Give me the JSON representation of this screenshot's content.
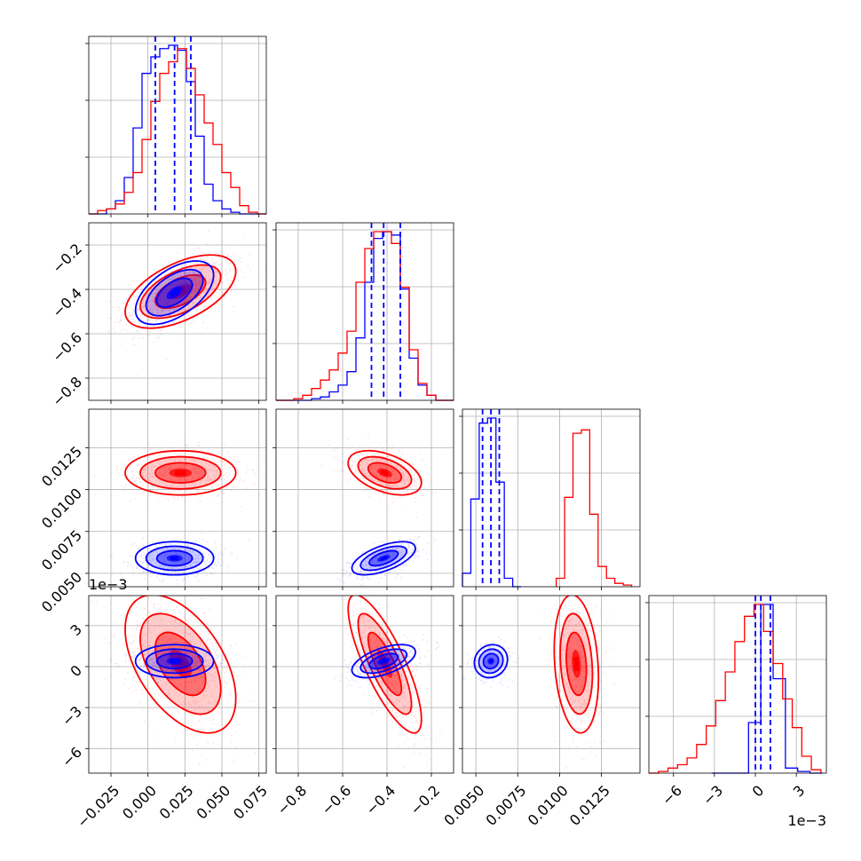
{
  "chart_data": {
    "type": "corner",
    "description_colors": {
      "series_a": "#0000ff",
      "series_b": "#ff0000"
    },
    "grid": true,
    "panels": {
      "p0": {
        "xlim": [
          -0.04,
          0.08
        ],
        "xticks": [
          -0.025,
          0.0,
          0.025,
          0.05,
          0.075
        ],
        "xtick_labels": [
          "−0.025",
          "0.000",
          "0.025",
          "0.050",
          "0.075"
        ]
      },
      "p1": {
        "xlim": [
          -0.9,
          -0.1
        ],
        "xticks": [
          -0.8,
          -0.6,
          -0.4,
          -0.2
        ],
        "xtick_labels": [
          "−0.8",
          "−0.6",
          "−0.4",
          "−0.2"
        ],
        "ylim": [
          -0.9,
          -0.1
        ],
        "yticks": [
          -0.8,
          -0.6,
          -0.4,
          -0.2
        ],
        "ytick_labels": [
          "−0.8",
          "−0.6",
          "−0.4",
          "−0.2"
        ]
      },
      "p2": {
        "xlim": [
          0.0042,
          0.0148
        ],
        "xticks": [
          0.005,
          0.0075,
          0.01,
          0.0125
        ],
        "xtick_labels": [
          "0.0050",
          "0.0075",
          "0.0100",
          "0.0125"
        ],
        "ylim": [
          0.0042,
          0.0148
        ],
        "yticks": [
          0.005,
          0.0075,
          0.01,
          0.0125
        ],
        "ytick_labels": [
          "0.0050",
          "0.0075",
          "0.0100",
          "0.0125"
        ]
      },
      "p3": {
        "xlim": [
          -0.0078,
          0.0052
        ],
        "xticks": [
          -0.006,
          -0.003,
          0.0,
          0.003
        ],
        "xtick_labels": [
          "−6",
          "−3",
          "0",
          "3"
        ],
        "ylim": [
          -0.0078,
          0.0052
        ],
        "yticks": [
          -0.006,
          -0.003,
          0.0,
          0.003
        ],
        "ytick_labels": [
          "−6",
          "−3",
          "0",
          "3"
        ],
        "offset_text": "1e−3"
      }
    },
    "series": [
      {
        "color": "#0000ff",
        "means": [
          0.018,
          -0.415,
          0.0059,
          0.0004
        ],
        "stds": [
          0.012,
          0.065,
          0.00045,
          0.00055
        ],
        "corr": [
          [
            1,
            0.55,
            0.0,
            0.0
          ],
          [
            0.55,
            1,
            0.6,
            0.55
          ],
          [
            0.0,
            0.6,
            1,
            0.1
          ],
          [
            0.0,
            0.55,
            0.1,
            1
          ]
        ],
        "quantiles": [
          [
            0.005,
            0.018,
            0.029
          ],
          [
            -0.47,
            -0.415,
            -0.34
          ],
          [
            0.0054,
            0.0059,
            0.0064
          ],
          [
            0.0,
            0.0004,
            0.0011
          ]
        ],
        "hist": [
          {
            "edges": [
              -0.04,
              -0.034,
              -0.028,
              -0.022,
              -0.016,
              -0.01,
              -0.004,
              0.002,
              0.008,
              0.014,
              0.02,
              0.026,
              0.032,
              0.038,
              0.044,
              0.05,
              0.056,
              0.062,
              0.068,
              0.074,
              0.08
            ],
            "counts": [
              0,
              0,
              3,
              8,
              22,
              52,
              85,
              95,
              100,
              102,
              99,
              80,
              47,
              18,
              8,
              3,
              1,
              0,
              0,
              0
            ]
          },
          {
            "edges": [
              -0.9,
              -0.86,
              -0.82,
              -0.78,
              -0.74,
              -0.7,
              -0.66,
              -0.62,
              -0.58,
              -0.54,
              -0.5,
              -0.46,
              -0.42,
              -0.38,
              -0.34,
              -0.3,
              -0.26,
              -0.22,
              -0.18,
              -0.14,
              -0.1
            ],
            "counts": [
              0,
              0,
              0,
              0,
              1,
              2,
              5,
              9,
              17,
              37,
              70,
              96,
              100,
              98,
              66,
              25,
              9,
              3,
              0,
              0
            ]
          },
          {
            "edges": [
              0.0042,
              0.0047,
              0.0052,
              0.0057,
              0.0062,
              0.0067,
              0.0072,
              0.0077
            ],
            "counts": [
              8,
              52,
              97,
              100,
              62,
              5,
              0
            ]
          },
          {
            "edges": [
              -0.0032,
              -0.0023,
              -0.0014,
              -0.0005,
              0.0004,
              0.0013,
              0.0022,
              0.0031,
              0.004,
              0.0049
            ],
            "counts": [
              0,
              0,
              0,
              30,
              100,
              56,
              3,
              1,
              0
            ]
          }
        ]
      },
      {
        "color": "#ff0000",
        "means": [
          0.022,
          -0.41,
          0.011,
          0.0002
        ],
        "stds": [
          0.017,
          0.075,
          0.0006,
          0.0023
        ],
        "corr": [
          [
            1,
            0.55,
            0.0,
            -0.5
          ],
          [
            0.55,
            1,
            -0.45,
            -0.8
          ],
          [
            0.0,
            -0.45,
            1,
            -0.2
          ],
          [
            -0.5,
            -0.8,
            -0.2,
            1
          ]
        ],
        "hist": [
          {
            "edges": [
              -0.04,
              -0.034,
              -0.028,
              -0.022,
              -0.016,
              -0.01,
              -0.004,
              0.002,
              0.008,
              0.014,
              0.02,
              0.026,
              0.032,
              0.038,
              0.044,
              0.05,
              0.056,
              0.062,
              0.068,
              0.074,
              0.08
            ],
            "counts": [
              0,
              2,
              3,
              6,
              13,
              25,
              45,
              68,
              85,
              92,
              100,
              88,
              72,
              55,
              42,
              25,
              16,
              5,
              1,
              0
            ]
          },
          {
            "edges": [
              -0.9,
              -0.86,
              -0.82,
              -0.78,
              -0.74,
              -0.7,
              -0.66,
              -0.62,
              -0.58,
              -0.54,
              -0.5,
              -0.46,
              -0.42,
              -0.38,
              -0.34,
              -0.3,
              -0.26,
              -0.22,
              -0.18,
              -0.14,
              -0.1
            ],
            "counts": [
              0,
              0,
              1,
              3,
              7,
              12,
              18,
              28,
              41,
              70,
              90,
              100,
              100,
              93,
              67,
              30,
              10,
              3,
              0,
              0
            ]
          },
          {
            "edges": [
              0.0098,
              0.0103,
              0.0108,
              0.0113,
              0.0118,
              0.0123,
              0.0128,
              0.0133,
              0.0138,
              0.0143
            ],
            "counts": [
              5,
              53,
              91,
              93,
              43,
              12,
              5,
              2,
              1
            ]
          },
          {
            "edges": [
              -0.0078,
              -0.0071,
              -0.0064,
              -0.0057,
              -0.005,
              -0.0043,
              -0.0036,
              -0.0029,
              -0.0022,
              -0.0015,
              -0.0008,
              -0.0001,
              0.0006,
              0.0013,
              0.002,
              0.0027,
              0.0034,
              0.0041,
              0.0048
            ],
            "counts": [
              0,
              1,
              3,
              5,
              9,
              17,
              28,
              43,
              60,
              78,
              93,
              100,
              84,
              65,
              44,
              27,
              10,
              2
            ]
          }
        ]
      }
    ]
  }
}
